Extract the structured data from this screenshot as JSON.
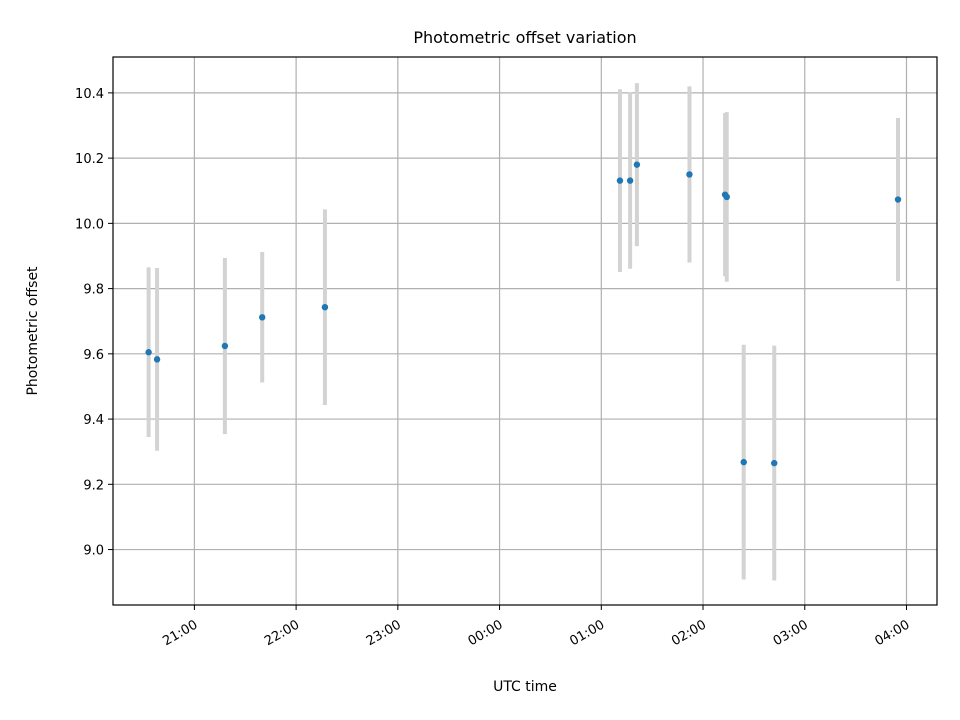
{
  "chart_data": {
    "type": "scatter",
    "title": "Photometric offset variation",
    "xlabel": "UTC time",
    "ylabel": "Photometric offset",
    "grid": true,
    "x_tick_labels": [
      "21:00",
      "22:00",
      "23:00",
      "00:00",
      "01:00",
      "02:00",
      "03:00",
      "04:00"
    ],
    "y_tick_labels": [
      "9.0",
      "9.2",
      "9.4",
      "9.6",
      "9.8",
      "10.0",
      "10.2",
      "10.4"
    ],
    "x_unit": "UTC time (hours after 21:00, crossing midnight)",
    "xlim": [
      -0.8,
      7.3
    ],
    "ylim": [
      8.83,
      10.51
    ],
    "point_color": "#1f77b4",
    "errorbar_color": "#d3d3d3",
    "points": [
      {
        "x": "20:33",
        "y": 9.605,
        "err": 0.26
      },
      {
        "x": "20:38",
        "y": 9.583,
        "err": 0.28
      },
      {
        "x": "21:18",
        "y": 9.624,
        "err": 0.27
      },
      {
        "x": "21:40",
        "y": 9.712,
        "err": 0.2
      },
      {
        "x": "22:17",
        "y": 9.743,
        "err": 0.3
      },
      {
        "x": "01:11",
        "y": 10.131,
        "err": 0.28
      },
      {
        "x": "01:17",
        "y": 10.131,
        "err": 0.27
      },
      {
        "x": "01:21",
        "y": 10.18,
        "err": 0.25
      },
      {
        "x": "01:52",
        "y": 10.15,
        "err": 0.27
      },
      {
        "x": "02:13",
        "y": 10.088,
        "err": 0.25
      },
      {
        "x": "02:14",
        "y": 10.081,
        "err": 0.26
      },
      {
        "x": "02:24",
        "y": 9.268,
        "err": 0.36
      },
      {
        "x": "02:42",
        "y": 9.265,
        "err": 0.36
      },
      {
        "x": "03:55",
        "y": 10.073,
        "err": 0.25
      }
    ]
  }
}
